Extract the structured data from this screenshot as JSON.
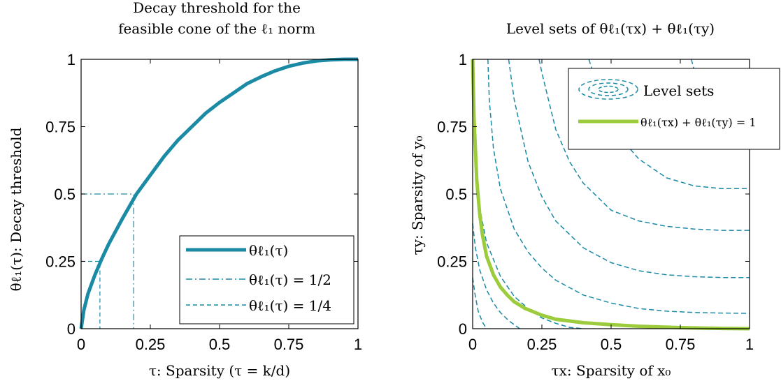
{
  "colors": {
    "teal": "#1a8aa5",
    "green": "#9ccc3c",
    "axis": "#000000",
    "background": "#ffffff"
  },
  "chart_data": [
    {
      "type": "line",
      "title_line1": "Decay threshold for the",
      "title_line2": "feasible cone of the ℓ₁ norm",
      "xlabel": "τ: Sparsity (τ = k/d)",
      "ylabel": "θℓ₁(τ): Decay threshold",
      "xlim": [
        0,
        1
      ],
      "ylim": [
        0,
        1
      ],
      "xticks": [
        0,
        0.25,
        0.5,
        0.75,
        1
      ],
      "yticks": [
        0,
        0.25,
        0.5,
        0.75,
        1
      ],
      "xtick_labels": [
        "0",
        "0.25",
        "0.5",
        "0.75",
        "1"
      ],
      "ytick_labels": [
        "0",
        "0.25",
        "0.5",
        "0.75",
        "1"
      ],
      "grid": false,
      "legend_position": "bottom-right",
      "series": [
        {
          "name": "θℓ₁(τ)",
          "style": "solid-thick",
          "x": [
            0,
            0.01,
            0.025,
            0.05,
            0.075,
            0.1,
            0.15,
            0.2,
            0.25,
            0.3,
            0.35,
            0.4,
            0.45,
            0.5,
            0.55,
            0.6,
            0.65,
            0.7,
            0.75,
            0.8,
            0.85,
            0.9,
            0.95,
            1.0
          ],
          "y": [
            0,
            0.07,
            0.13,
            0.2,
            0.26,
            0.315,
            0.41,
            0.5,
            0.57,
            0.64,
            0.7,
            0.75,
            0.8,
            0.84,
            0.875,
            0.91,
            0.935,
            0.957,
            0.974,
            0.986,
            0.994,
            0.998,
            1.0,
            1.0
          ]
        },
        {
          "name": "θℓ₁(τ) = 1/2",
          "style": "dashdot",
          "x": [
            0,
            0.19,
            0.19
          ],
          "y": [
            0.5,
            0.5,
            0
          ]
        },
        {
          "name": "θℓ₁(τ) = 1/4",
          "style": "dashed",
          "x": [
            0,
            0.068,
            0.068
          ],
          "y": [
            0.25,
            0.25,
            0
          ]
        }
      ]
    },
    {
      "type": "line",
      "title": "Level sets of θℓ₁(τx) + θℓ₁(τy)",
      "xlabel": "τx: Sparsity of x₀",
      "ylabel": "τy: Sparsity of y₀",
      "xlim": [
        0,
        1
      ],
      "ylim": [
        0,
        1
      ],
      "xticks": [
        0,
        0.25,
        0.5,
        0.75,
        1
      ],
      "yticks": [
        0,
        0.25,
        0.5,
        0.75,
        1
      ],
      "xtick_labels": [
        "0",
        "0.25",
        "0.5",
        "0.75",
        "1"
      ],
      "ytick_labels": [
        "0",
        "0.25",
        "0.5",
        "0.75",
        "1"
      ],
      "grid": false,
      "legend_position": "top-right",
      "legend": [
        {
          "name": "Level sets",
          "style": "contour-dashed"
        },
        {
          "name": "θℓ₁(τx) + θℓ₁(τy) = 1",
          "style": "solid-thick"
        }
      ],
      "contour_levels": [
        {
          "level": 0.2,
          "x": [
            0,
            0.008,
            0.02,
            0.035,
            0.05
          ],
          "y": [
            0.19,
            0.13,
            0.065,
            0.025,
            0
          ]
        },
        {
          "level": 0.4,
          "x": [
            0,
            0.01,
            0.025,
            0.05,
            0.075,
            0.1,
            0.13,
            0.17
          ],
          "y": [
            0.39,
            0.3,
            0.22,
            0.145,
            0.095,
            0.06,
            0.03,
            0
          ]
        },
        {
          "level": 0.6,
          "x": [
            0,
            0.01,
            0.025,
            0.05,
            0.1,
            0.15,
            0.2,
            0.25,
            0.3,
            0.35,
            0.4
          ],
          "y": [
            0.995,
            0.6,
            0.45,
            0.32,
            0.195,
            0.12,
            0.075,
            0.04,
            0.02,
            0.005,
            0
          ]
        },
        {
          "level": 1.0,
          "x": [
            0.055,
            0.06,
            0.075,
            0.1,
            0.15,
            0.2,
            0.25,
            0.3,
            0.4,
            0.5,
            0.6,
            0.7,
            0.8,
            0.9,
            1.0
          ],
          "y": [
            1.0,
            0.85,
            0.67,
            0.52,
            0.37,
            0.285,
            0.225,
            0.18,
            0.125,
            0.095,
            0.075,
            0.065,
            0.06,
            0.058,
            0.057
          ]
        },
        {
          "level": 1.2,
          "x": [
            0.13,
            0.15,
            0.2,
            0.25,
            0.3,
            0.4,
            0.5,
            0.6,
            0.7,
            0.8,
            0.9,
            1.0
          ],
          "y": [
            1.0,
            0.85,
            0.62,
            0.49,
            0.4,
            0.3,
            0.245,
            0.215,
            0.2,
            0.193,
            0.19,
            0.19
          ]
        },
        {
          "level": 1.4,
          "x": [
            0.24,
            0.25,
            0.3,
            0.35,
            0.4,
            0.5,
            0.6,
            0.7,
            0.8,
            0.9,
            1.0
          ],
          "y": [
            1.0,
            0.95,
            0.74,
            0.62,
            0.54,
            0.44,
            0.4,
            0.38,
            0.37,
            0.365,
            0.365
          ]
        },
        {
          "level": 1.6,
          "x": [
            0.42,
            0.45,
            0.5,
            0.55,
            0.6,
            0.7,
            0.8,
            0.9,
            1.0
          ],
          "y": [
            1.0,
            0.9,
            0.77,
            0.69,
            0.63,
            0.56,
            0.53,
            0.52,
            0.52
          ]
        },
        {
          "level": 1.8,
          "x": [
            0.79,
            0.82,
            0.86,
            0.9,
            0.95,
            1.0
          ],
          "y": [
            1.0,
            0.88,
            0.8,
            0.75,
            0.72,
            0.71
          ]
        }
      ],
      "series": [
        {
          "name": "θℓ₁(τx) + θℓ₁(τy) = 1",
          "style": "solid-thick-green",
          "x": [
            0,
            0.005,
            0.015,
            0.025,
            0.035,
            0.05,
            0.075,
            0.1,
            0.125,
            0.15,
            0.19,
            0.25,
            0.3,
            0.4,
            0.5,
            0.6,
            0.75,
            0.9,
            1.0
          ],
          "y": [
            1.0,
            0.78,
            0.55,
            0.43,
            0.35,
            0.27,
            0.2,
            0.155,
            0.125,
            0.1,
            0.075,
            0.05,
            0.035,
            0.022,
            0.015,
            0.009,
            0.004,
            0.001,
            0
          ]
        }
      ]
    }
  ]
}
